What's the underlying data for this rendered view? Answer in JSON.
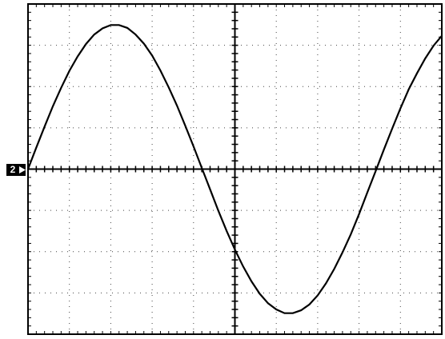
{
  "chart_data": {
    "type": "line",
    "channel_marker": "2",
    "x": [
      0,
      0.2,
      0.4,
      0.6,
      0.8,
      1.0,
      1.2,
      1.4,
      1.6,
      1.8,
      2.0,
      2.2,
      2.4,
      2.6,
      2.8,
      3.0,
      3.2,
      3.4,
      3.6,
      3.8,
      4.0,
      4.2,
      4.4,
      4.6,
      4.8,
      5.0,
      5.2,
      5.4,
      5.6,
      5.8,
      6.0,
      6.2,
      6.4,
      6.6,
      6.8,
      7.0,
      7.2,
      7.4,
      7.6,
      7.8,
      8.0,
      8.2,
      8.4,
      8.6,
      8.8,
      9.0,
      9.2,
      9.4,
      9.6,
      9.8,
      10.0
    ],
    "values": [
      0,
      0.52,
      1.03,
      1.52,
      1.97,
      2.38,
      2.73,
      3.03,
      3.26,
      3.41,
      3.49,
      3.49,
      3.42,
      3.26,
      3.04,
      2.75,
      2.39,
      1.98,
      1.54,
      1.05,
      0.55,
      0.03,
      -0.49,
      -1.01,
      -1.5,
      -1.95,
      -2.36,
      -2.72,
      -3.02,
      -3.25,
      -3.4,
      -3.49,
      -3.49,
      -3.42,
      -3.28,
      -3.06,
      -2.77,
      -2.42,
      -2.02,
      -1.58,
      -1.09,
      -0.57,
      -0.05,
      0.47,
      0.98,
      1.47,
      1.93,
      2.32,
      2.68,
      2.99,
      3.23
    ],
    "color": "#000000",
    "xlim": [
      0,
      10
    ],
    "ylim": [
      -4,
      4
    ],
    "grid": true
  }
}
